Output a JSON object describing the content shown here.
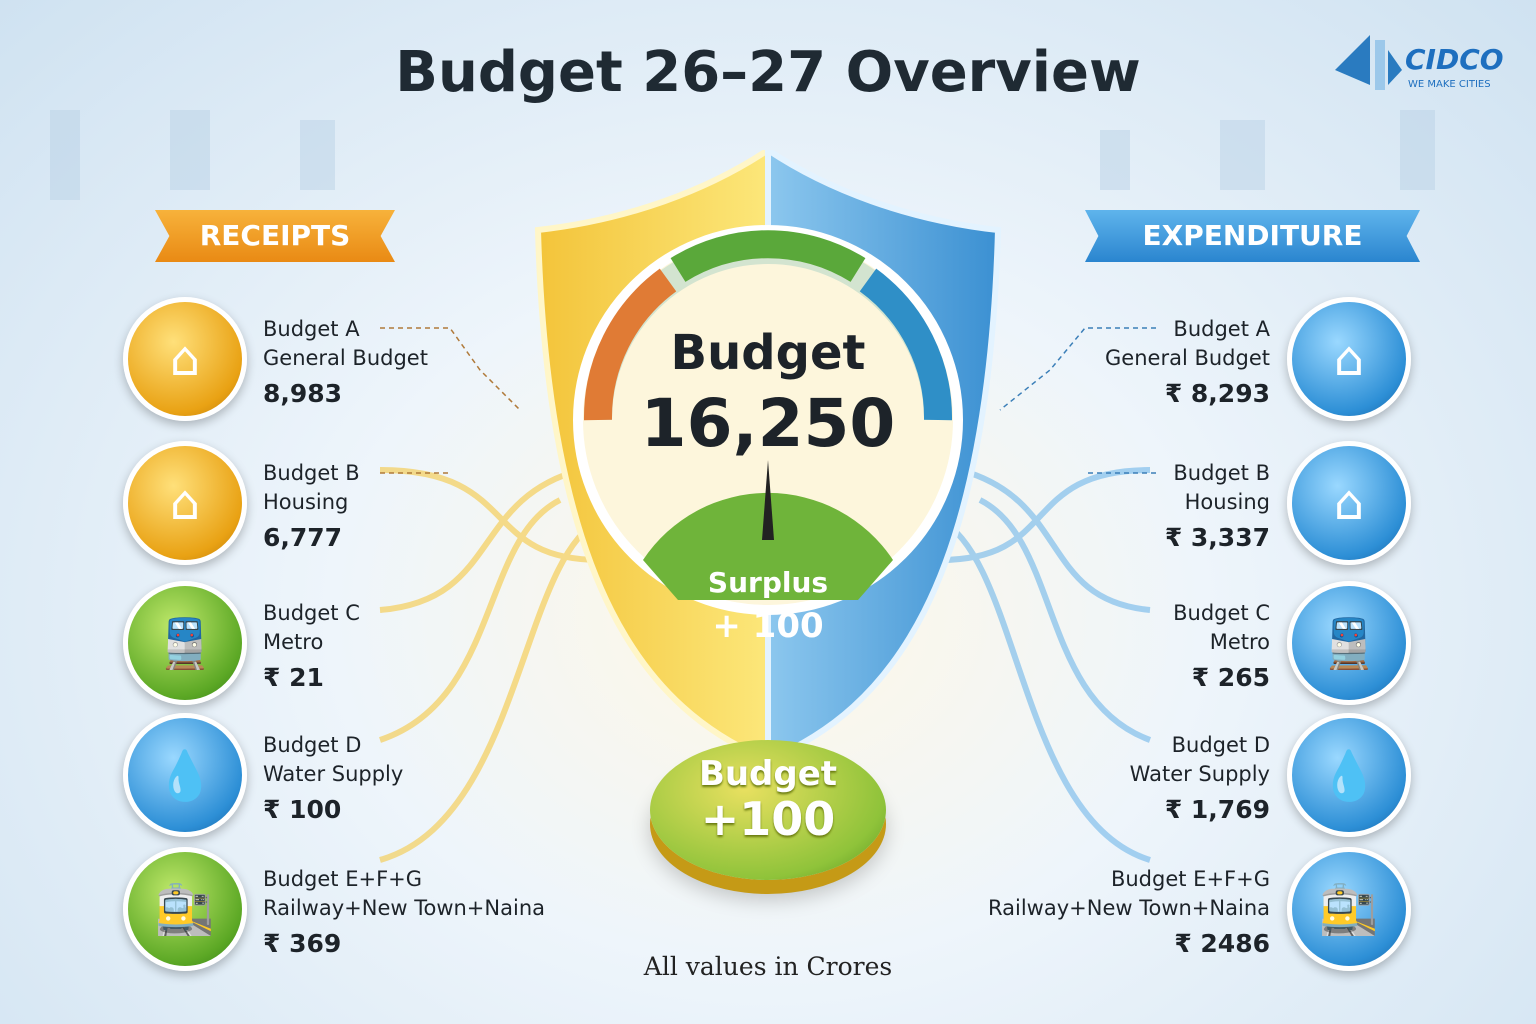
{
  "title": "Budget 26–27 Overview",
  "logo": {
    "name": "CIDCO",
    "tagline": "WE MAKE CITIES"
  },
  "receipts": {
    "label": "RECEIPTS",
    "items": [
      {
        "name": "Budget A",
        "sub": "General Budget",
        "value": "8,983",
        "icon": "house-emblem-icon"
      },
      {
        "name": "Budget B",
        "sub": "Housing",
        "value": "6,777",
        "icon": "house-icon"
      },
      {
        "name": "Budget C",
        "sub": "Metro",
        "value": "₹ 21",
        "icon": "metro-train-icon"
      },
      {
        "name": "Budget D",
        "sub": "Water Supply",
        "value": "₹ 100",
        "icon": "water-drop-icon"
      },
      {
        "name": "Budget E+F+G",
        "sub": "Railway+New Town+Naina",
        "value": "₹ 369",
        "icon": "railway-town-icon"
      }
    ]
  },
  "expenditure": {
    "label": "EXPENDITURE",
    "items": [
      {
        "name": "Budget A",
        "sub": "General Budget",
        "value": "₹ 8,293",
        "icon": "house-emblem-icon"
      },
      {
        "name": "Budget B",
        "sub": "Housing",
        "value": "₹ 3,337",
        "icon": "house-icon"
      },
      {
        "name": "Budget C",
        "sub": "Metro",
        "value": "₹ 265",
        "icon": "metro-train-icon"
      },
      {
        "name": "Budget D",
        "sub": "Water Supply",
        "value": "₹ 1,769",
        "icon": "water-drop-icon"
      },
      {
        "name": "Budget E+F+G",
        "sub": "Railway+New Town+Naina",
        "value": "₹  2486",
        "icon": "railway-town-icon"
      }
    ]
  },
  "gauge": {
    "label": "Budget",
    "total": "16,250",
    "surplus_label": "Surplus",
    "surplus_value": "+ 100"
  },
  "coin": {
    "label": "Budget",
    "value": "+100"
  },
  "note": "All values in Crores",
  "colors": {
    "receipts": "#e98a14",
    "expenditure": "#2a85cf",
    "surplus": "#5ca825"
  }
}
